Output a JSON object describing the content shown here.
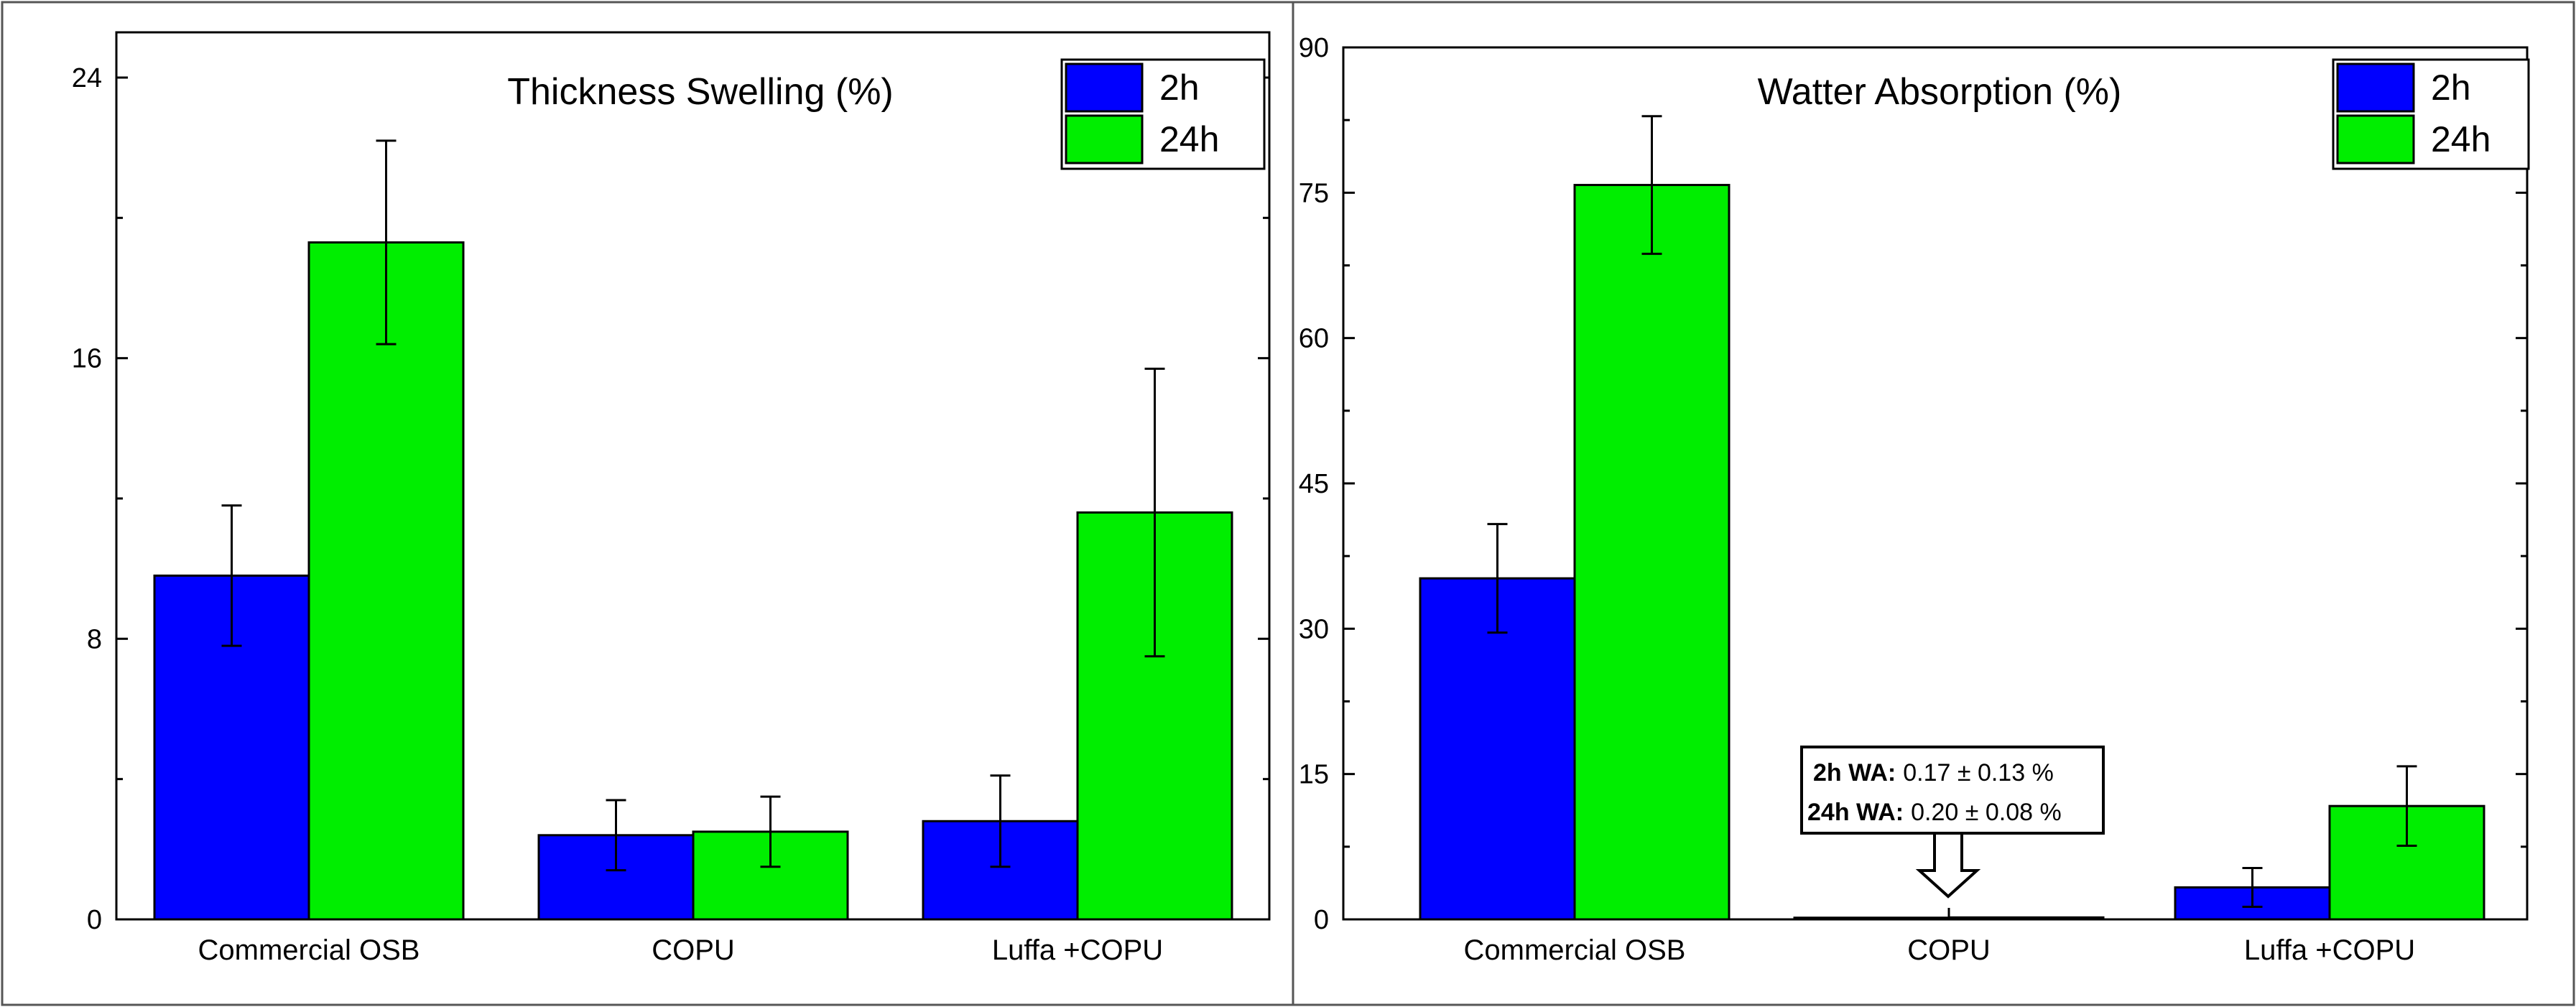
{
  "chart_data": [
    {
      "type": "bar",
      "title": "Thickness Swelling (%)",
      "categories": [
        "Commercial OSB",
        "COPU",
        "Luffa +COPU"
      ],
      "series": [
        {
          "name": "2h",
          "color": "#0000ff",
          "values": [
            9.8,
            2.4,
            2.8
          ],
          "errors": [
            2.0,
            1.0,
            1.3
          ]
        },
        {
          "name": "24h",
          "color": "#00ee00",
          "values": [
            19.3,
            2.5,
            11.6
          ],
          "errors": [
            2.9,
            1.0,
            4.1
          ]
        }
      ],
      "yticks": [
        0,
        8,
        16,
        24
      ],
      "ylim": [
        0,
        25
      ],
      "legend": "top-right",
      "xlabel": "",
      "ylabel": ""
    },
    {
      "type": "bar",
      "title": "Watter Absorption (%)",
      "categories": [
        "Commercial OSB",
        "COPU",
        "Luffa +COPU"
      ],
      "series": [
        {
          "name": "2h",
          "color": "#0000ff",
          "values": [
            35.2,
            0.17,
            3.3
          ],
          "errors": [
            5.6,
            0.13,
            2.0
          ]
        },
        {
          "name": "24h",
          "color": "#00ee00",
          "values": [
            75.8,
            0.2,
            11.7
          ],
          "errors": [
            7.1,
            0.08,
            4.1
          ]
        }
      ],
      "yticks": [
        0,
        15,
        30,
        45,
        60,
        75,
        90
      ],
      "ylim": [
        0,
        90
      ],
      "legend": "top-right",
      "xlabel": "",
      "ylabel": "",
      "annotation": {
        "lines": [
          {
            "label": "2h WA:",
            "value": "0.17 ± 0.13 %"
          },
          {
            "label": "24h WA:",
            "value": "0.20 ± 0.08 %"
          }
        ],
        "points_to": "COPU"
      }
    }
  ]
}
